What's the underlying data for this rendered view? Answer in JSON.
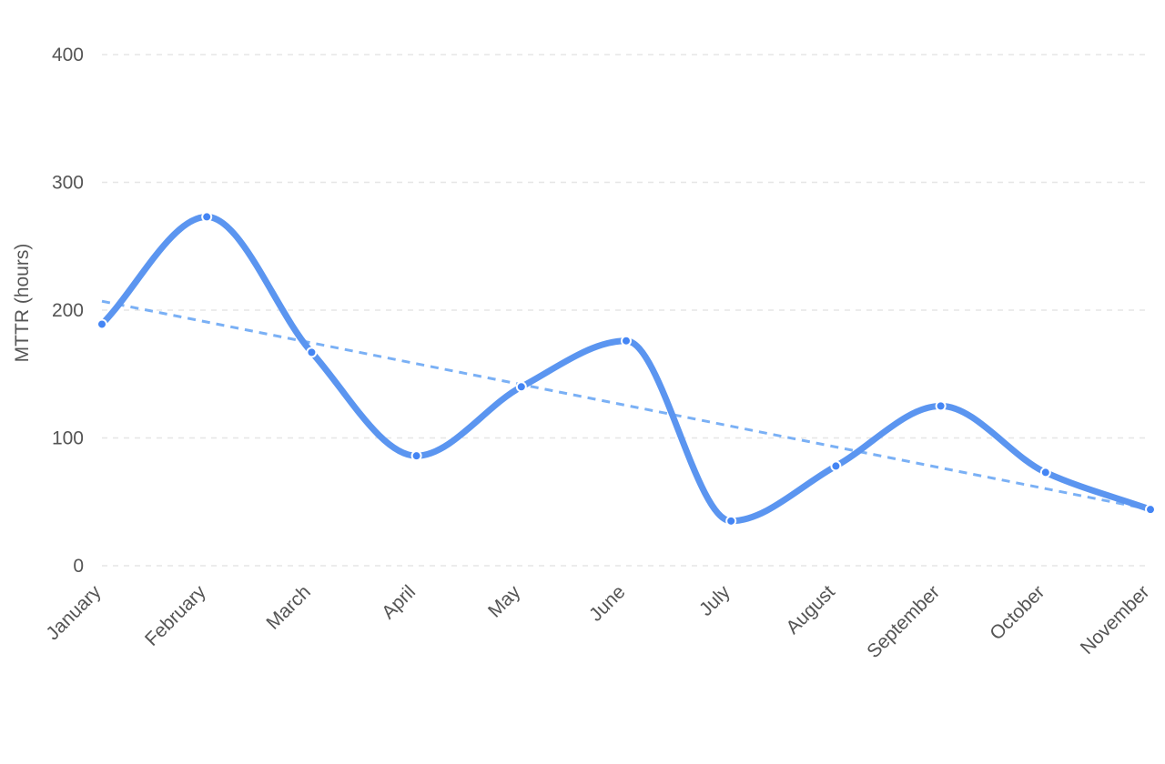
{
  "chart_data": {
    "type": "line",
    "title": "",
    "xlabel": "",
    "ylabel": "MTTR (hours)",
    "categories": [
      "January",
      "February",
      "March",
      "April",
      "May",
      "June",
      "July",
      "August",
      "September",
      "October",
      "November"
    ],
    "series": [
      {
        "values": [
          189,
          273,
          167,
          86,
          140,
          176,
          35,
          78,
          125,
          73,
          44
        ]
      }
    ],
    "trendline": {
      "type": "linear",
      "start": 207,
      "end": 44
    },
    "ylim": [
      0,
      400
    ],
    "yticks": [
      0,
      100,
      200,
      300,
      400
    ],
    "grid": true,
    "colors": {
      "line": "#5b95f0",
      "trend": "#7ab0f5",
      "point": "#4485f4",
      "point_outline": "#ffffff",
      "grid": "#e6e6e6",
      "text": "#555555"
    }
  }
}
